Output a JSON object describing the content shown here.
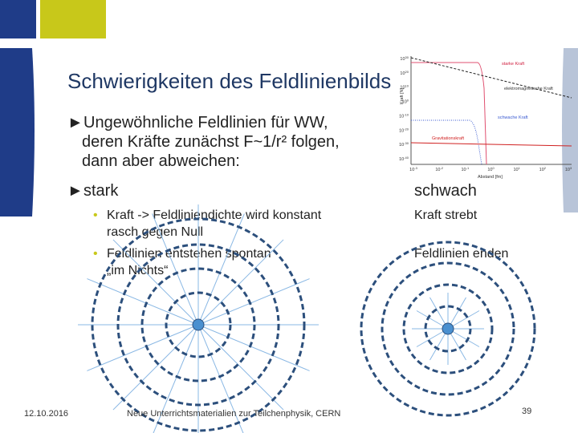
{
  "title": "Schwierigkeiten des Feldlinienbilds",
  "intro": {
    "marker": "►",
    "lines": [
      "Ungewöhnliche Feldlinien für WW,",
      "deren Kräfte zunächst F~1/r² folgen,",
      "dann aber abweichen:"
    ]
  },
  "strong": {
    "marker": "►",
    "heading": "stark",
    "bullets": [
      {
        "marker": "•",
        "lines": [
          "Kraft -> Feldliniendichte wird konstant",
          "rasch gegen Null"
        ]
      },
      {
        "marker": "•",
        "lines": [
          "Feldlinien entstehen spontan",
          "„im Nichts“"
        ]
      }
    ]
  },
  "weak": {
    "heading": "schwach",
    "items": [
      "Kraft strebt",
      "Feldlinien enden"
    ]
  },
  "inset": {
    "y_label": "Kraft [N]",
    "x_label": "Abstand [fm]",
    "curve_labels": [
      "starke Kraft",
      "elektromagnetische Kraft",
      "schwache Kraft",
      "Gravitationskraft"
    ],
    "y_ticks": [
      {
        "base": "10",
        "exp": "30"
      },
      {
        "base": "10",
        "exp": "20"
      },
      {
        "base": "10",
        "exp": "10"
      },
      {
        "base": "10",
        "exp": "0"
      },
      {
        "base": "10",
        "exp": "-10"
      },
      {
        "base": "10",
        "exp": "-20"
      },
      {
        "base": "10",
        "exp": "-30"
      },
      {
        "base": "10",
        "exp": "-40"
      }
    ],
    "x_ticks": [
      {
        "base": "10",
        "exp": "-3"
      },
      {
        "base": "10",
        "exp": "-2"
      },
      {
        "base": "10",
        "exp": "-1"
      },
      {
        "base": "10",
        "exp": "0"
      },
      {
        "base": "10",
        "exp": "1"
      },
      {
        "base": "10",
        "exp": "2"
      },
      {
        "base": "10",
        "exp": "3"
      }
    ]
  },
  "footer": {
    "date": "12.10.2016",
    "source": "Neue Unterrichtsmaterialien zur Teilchenphysik, CERN",
    "page": "39"
  }
}
